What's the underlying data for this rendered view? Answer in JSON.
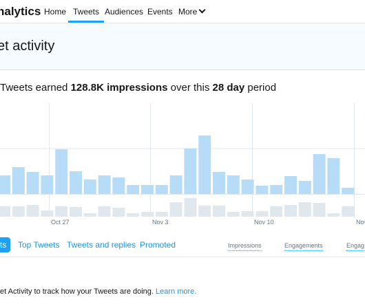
{
  "nav": {
    "brand": "nalytics",
    "links": [
      {
        "label": "Home"
      },
      {
        "label": "Tweets"
      },
      {
        "label": "Audiences"
      },
      {
        "label": "Events"
      },
      {
        "label": "More"
      }
    ]
  },
  "hero": {
    "title": "et activity"
  },
  "summary": {
    "prefix": "Tweets earned ",
    "impressions": "128.8K impressions",
    "middle": " over this ",
    "period": "28 day",
    "suffix": " period"
  },
  "chart_data": {
    "type": "bar",
    "x_labels": [
      "Oct 27",
      "Nov 3",
      "Nov 10",
      "Nov"
    ],
    "impressions": [
      27,
      39,
      32,
      27,
      65,
      33,
      21,
      27,
      24,
      13,
      13,
      13,
      27,
      66,
      85,
      32,
      27,
      21,
      12,
      13,
      26,
      19,
      58,
      52,
      9
    ],
    "engagements": [
      15,
      15,
      17,
      9,
      15,
      14,
      5,
      15,
      13,
      5,
      7,
      7,
      21,
      27,
      16,
      16,
      7,
      8,
      8,
      15,
      17,
      21,
      20,
      5,
      15
    ],
    "colors": {
      "impressions": "#b7dcf8",
      "engagements": "#e1e8ed",
      "gridline": "#e1e8ed"
    }
  },
  "tabs": {
    "first": "ts",
    "items": [
      {
        "label": "Top Tweets"
      },
      {
        "label": "Tweets and replies"
      },
      {
        "label": "Promoted"
      }
    ],
    "metrics": [
      {
        "label": "Impressions"
      },
      {
        "label": "Engagements"
      },
      {
        "label": "Engag"
      }
    ]
  },
  "footer": {
    "text": "et Activity to track how your Tweets are doing. ",
    "link": "Learn more."
  }
}
